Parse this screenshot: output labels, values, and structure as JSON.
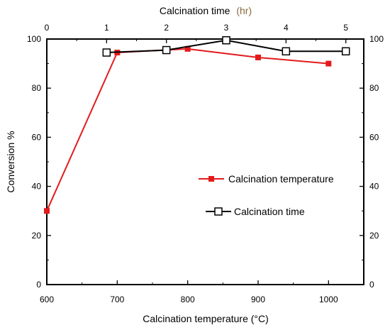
{
  "chart_data": {
    "type": "line",
    "title": "",
    "xlabel_bottom": "Calcination temperature (°C)",
    "xlabel_top": "Calcination time (hr)",
    "xlabel_top_name": "Calcination time",
    "xlabel_top_unit": "(hr)",
    "ylabel": "Conversion %",
    "x_bottom_lim": [
      600,
      1050
    ],
    "x_bottom_ticks": [
      "600",
      "700",
      "800",
      "900",
      "1000"
    ],
    "x_top_lim": [
      0,
      5.3
    ],
    "x_top_ticks": [
      "0",
      "1",
      "2",
      "3",
      "4",
      "5"
    ],
    "ylim": [
      0,
      100
    ],
    "y_ticks": [
      "0",
      "20",
      "40",
      "60",
      "80",
      "100"
    ],
    "grid": false,
    "legend_position": "center-right",
    "series": [
      {
        "name": "Calcination temperature",
        "axis": "bottom",
        "color": "#e31a1c",
        "marker": "filled-square",
        "x": [
          600,
          700,
          800,
          900,
          1000
        ],
        "y": [
          30,
          94.5,
          96,
          92.5,
          90
        ]
      },
      {
        "name": "Calcination time",
        "axis": "top",
        "color": "#000000",
        "marker": "open-square",
        "x": [
          1,
          2,
          3,
          4,
          5
        ],
        "y": [
          94.5,
          95.5,
          99.5,
          95,
          95
        ]
      }
    ]
  }
}
